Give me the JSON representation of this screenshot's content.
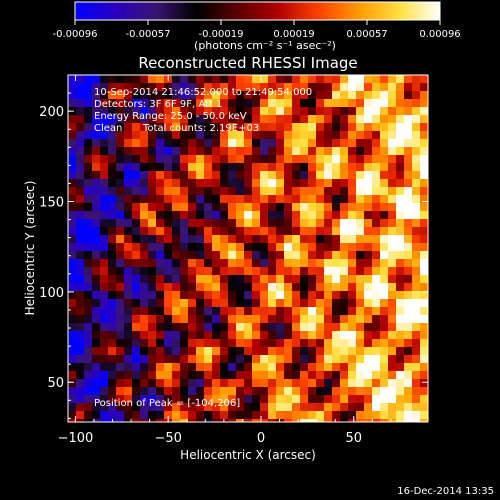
{
  "chart_data": {
    "type": "heatmap",
    "title": "Reconstructed RHESSI Image",
    "xlabel": "Heliocentric X (arcsec)",
    "ylabel": "Heliocentric Y (arcsec)",
    "xlim": [
      -104,
      90
    ],
    "ylim": [
      28,
      220
    ],
    "x_ticks": [
      -100,
      -50,
      0,
      50
    ],
    "y_ticks": [
      50,
      100,
      150,
      200
    ],
    "colorbar": {
      "ticks": [
        "-0.00096",
        "-0.00057",
        "-0.00019",
        "0.00019",
        "0.00057",
        "0.00096"
      ],
      "range": [
        -0.00096,
        0.00096
      ],
      "unit_label": "(photons cm⁻² s⁻¹ asec⁻²)",
      "palette": [
        "#0000ff",
        "#2a00c0",
        "#3a1570",
        "#000000",
        "#5a0000",
        "#b00000",
        "#ff4000",
        "#ff9a00",
        "#ffe040",
        "#ffffff"
      ]
    },
    "annotations": [
      "10-Sep-2014 21:46:52.000 to 21:49:54.000",
      "Detectors: 3F 6F 9F, Att 1",
      "Energy Range: 25.0 - 50.0 keV",
      "Clean",
      "Total counts: 2.19E+03",
      "Position of Peak = [-104,206]"
    ],
    "peak_position": [
      -104,
      206
    ],
    "grid": false
  },
  "footer": {
    "timestamp": "16-Dec-2014 13:35"
  }
}
